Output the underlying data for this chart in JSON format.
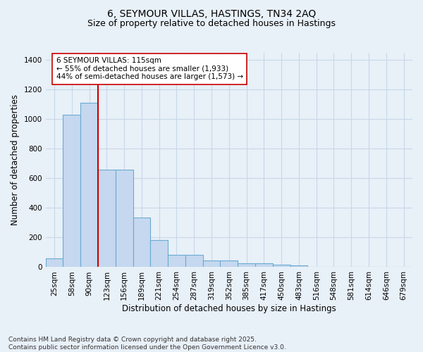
{
  "title_line1": "6, SEYMOUR VILLAS, HASTINGS, TN34 2AQ",
  "title_line2": "Size of property relative to detached houses in Hastings",
  "xlabel": "Distribution of detached houses by size in Hastings",
  "ylabel": "Number of detached properties",
  "categories": [
    "25sqm",
    "58sqm",
    "90sqm",
    "123sqm",
    "156sqm",
    "189sqm",
    "221sqm",
    "254sqm",
    "287sqm",
    "319sqm",
    "352sqm",
    "385sqm",
    "417sqm",
    "450sqm",
    "483sqm",
    "516sqm",
    "548sqm",
    "581sqm",
    "614sqm",
    "646sqm",
    "679sqm"
  ],
  "values": [
    60,
    1030,
    1110,
    660,
    660,
    335,
    185,
    85,
    85,
    45,
    45,
    28,
    25,
    15,
    10,
    0,
    0,
    0,
    0,
    0,
    0
  ],
  "bar_color": "#c5d8ef",
  "bar_edge_color": "#6aabd2",
  "vline_color": "#cc0000",
  "annotation_text": "6 SEYMOUR VILLAS: 115sqm\n← 55% of detached houses are smaller (1,933)\n44% of semi-detached houses are larger (1,573) →",
  "annotation_box_color": "#ffffff",
  "annotation_box_edge": "#cc0000",
  "ylim": [
    0,
    1450
  ],
  "yticks": [
    0,
    200,
    400,
    600,
    800,
    1000,
    1200,
    1400
  ],
  "bg_color": "#e8f0f8",
  "grid_color": "#c8d8e8",
  "footnote": "Contains HM Land Registry data © Crown copyright and database right 2025.\nContains public sector information licensed under the Open Government Licence v3.0.",
  "title_fontsize": 10,
  "subtitle_fontsize": 9,
  "axis_label_fontsize": 8.5,
  "tick_fontsize": 7.5,
  "annotation_fontsize": 7.5,
  "footnote_fontsize": 6.5
}
